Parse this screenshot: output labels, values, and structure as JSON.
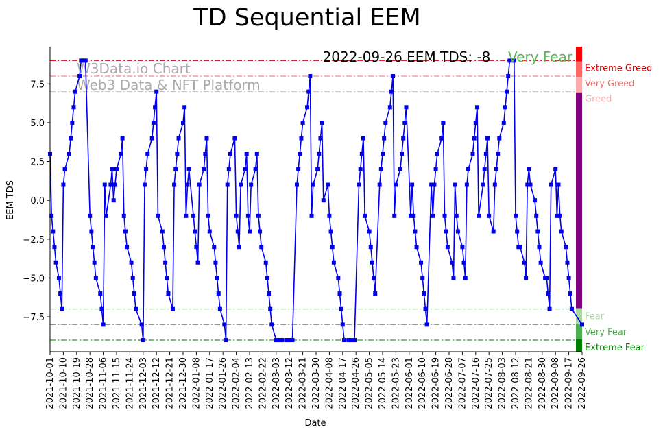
{
  "chart_data": {
    "type": "line",
    "title": "TD Sequential EEM",
    "xlabel": "Date",
    "ylabel": "EEM TDS",
    "ylim": [
      -9.75,
      9.9
    ],
    "yticks": [
      -7.5,
      -5.0,
      -2.5,
      0.0,
      2.5,
      5.0,
      7.5
    ],
    "ytick_labels": [
      "−7.5",
      "−5.0",
      "−2.5",
      "0.0",
      "2.5",
      "5.0",
      "7.5"
    ],
    "xticks": [
      "2021-10-01",
      "2021-10-10",
      "2021-10-19",
      "2021-10-28",
      "2021-11-06",
      "2021-11-15",
      "2021-11-24",
      "2021-12-03",
      "2021-12-12",
      "2021-12-21",
      "2021-12-30",
      "2022-01-08",
      "2022-01-17",
      "2022-01-26",
      "2022-02-04",
      "2022-02-13",
      "2022-02-22",
      "2022-03-03",
      "2022-03-12",
      "2022-03-21",
      "2022-03-30",
      "2022-04-08",
      "2022-04-17",
      "2022-04-26",
      "2022-05-05",
      "2022-05-14",
      "2022-05-23",
      "2022-06-01",
      "2022-06-10",
      "2022-06-19",
      "2022-06-28",
      "2022-07-07",
      "2022-07-16",
      "2022-07-25",
      "2022-08-03",
      "2022-08-12",
      "2022-08-21",
      "2022-08-30",
      "2022-09-08",
      "2022-09-17",
      "2022-09-26"
    ],
    "x_start": "2021-10-01",
    "x_end": "2022-09-26",
    "series": [
      {
        "name": "EEM TDS",
        "color": "#0000ee",
        "points": [
          [
            0,
            3
          ],
          [
            1,
            -1
          ],
          [
            2,
            -2
          ],
          [
            3,
            -3
          ],
          [
            4,
            -4
          ],
          [
            6,
            -5
          ],
          [
            7,
            -6
          ],
          [
            8,
            -7
          ],
          [
            9,
            1
          ],
          [
            10,
            2
          ],
          [
            13,
            3
          ],
          [
            14,
            4
          ],
          [
            15,
            5
          ],
          [
            16,
            6
          ],
          [
            17,
            7
          ],
          [
            20,
            8
          ],
          [
            21,
            9
          ],
          [
            22,
            9
          ],
          [
            23,
            9
          ],
          [
            24,
            9
          ],
          [
            27,
            -1
          ],
          [
            28,
            -2
          ],
          [
            29,
            -3
          ],
          [
            30,
            -4
          ],
          [
            31,
            -5
          ],
          [
            34,
            -6
          ],
          [
            35,
            -7
          ],
          [
            36,
            -8
          ],
          [
            37,
            1
          ],
          [
            38,
            -1
          ],
          [
            41,
            1
          ],
          [
            42,
            2
          ],
          [
            43,
            0
          ],
          [
            44,
            1
          ],
          [
            45,
            2
          ],
          [
            48,
            3
          ],
          [
            49,
            4
          ],
          [
            50,
            -1
          ],
          [
            51,
            -2
          ],
          [
            52,
            -3
          ],
          [
            55,
            -4
          ],
          [
            56,
            -5
          ],
          [
            57,
            -6
          ],
          [
            58,
            -7
          ],
          [
            62,
            -8
          ],
          [
            63,
            -9
          ],
          [
            64,
            1
          ],
          [
            65,
            2
          ],
          [
            66,
            3
          ],
          [
            69,
            4
          ],
          [
            70,
            5
          ],
          [
            71,
            6
          ],
          [
            72,
            7
          ],
          [
            73,
            -1
          ],
          [
            76,
            -2
          ],
          [
            77,
            -3
          ],
          [
            78,
            -4
          ],
          [
            79,
            -5
          ],
          [
            80,
            -6
          ],
          [
            83,
            -7
          ],
          [
            84,
            1
          ],
          [
            85,
            2
          ],
          [
            86,
            3
          ],
          [
            87,
            4
          ],
          [
            90,
            5
          ],
          [
            91,
            6
          ],
          [
            92,
            -1
          ],
          [
            93,
            1
          ],
          [
            94,
            2
          ],
          [
            97,
            -1
          ],
          [
            98,
            -2
          ],
          [
            99,
            -3
          ],
          [
            100,
            -4
          ],
          [
            101,
            1
          ],
          [
            104,
            2
          ],
          [
            105,
            3
          ],
          [
            106,
            4
          ],
          [
            107,
            -1
          ],
          [
            108,
            -2
          ],
          [
            111,
            -3
          ],
          [
            112,
            -4
          ],
          [
            113,
            -5
          ],
          [
            114,
            -6
          ],
          [
            115,
            -7
          ],
          [
            118,
            -8
          ],
          [
            119,
            -9
          ],
          [
            120,
            1
          ],
          [
            121,
            2
          ],
          [
            122,
            3
          ],
          [
            125,
            4
          ],
          [
            126,
            -1
          ],
          [
            127,
            -2
          ],
          [
            128,
            -3
          ],
          [
            129,
            1
          ],
          [
            132,
            2
          ],
          [
            133,
            3
          ],
          [
            134,
            -1
          ],
          [
            135,
            -2
          ],
          [
            136,
            1
          ],
          [
            139,
            2
          ],
          [
            140,
            3
          ],
          [
            141,
            -1
          ],
          [
            142,
            -2
          ],
          [
            143,
            -3
          ],
          [
            146,
            -4
          ],
          [
            147,
            -5
          ],
          [
            148,
            -6
          ],
          [
            149,
            -7
          ],
          [
            150,
            -8
          ],
          [
            153,
            -9
          ],
          [
            154,
            -9
          ],
          [
            155,
            -9
          ],
          [
            156,
            -9
          ],
          [
            157,
            -9
          ],
          [
            160,
            -9
          ],
          [
            161,
            -9
          ],
          [
            162,
            -9
          ],
          [
            163,
            -9
          ],
          [
            164,
            -9
          ],
          [
            167,
            1
          ],
          [
            168,
            2
          ],
          [
            169,
            3
          ],
          [
            170,
            4
          ],
          [
            171,
            5
          ],
          [
            174,
            6
          ],
          [
            175,
            7
          ],
          [
            176,
            8
          ],
          [
            177,
            -1
          ],
          [
            178,
            1
          ],
          [
            181,
            2
          ],
          [
            182,
            3
          ],
          [
            183,
            4
          ],
          [
            184,
            5
          ],
          [
            185,
            0
          ],
          [
            188,
            1
          ],
          [
            189,
            -1
          ],
          [
            190,
            -2
          ],
          [
            191,
            -3
          ],
          [
            192,
            -4
          ],
          [
            195,
            -5
          ],
          [
            196,
            -6
          ],
          [
            197,
            -7
          ],
          [
            198,
            -8
          ],
          [
            199,
            -9
          ],
          [
            202,
            -9
          ],
          [
            203,
            -9
          ],
          [
            204,
            -9
          ],
          [
            205,
            -9
          ],
          [
            206,
            -9
          ],
          [
            209,
            1
          ],
          [
            210,
            2
          ],
          [
            211,
            3
          ],
          [
            212,
            4
          ],
          [
            213,
            -1
          ],
          [
            216,
            -2
          ],
          [
            217,
            -3
          ],
          [
            218,
            -4
          ],
          [
            219,
            -5
          ],
          [
            220,
            -6
          ],
          [
            223,
            1
          ],
          [
            224,
            2
          ],
          [
            225,
            3
          ],
          [
            226,
            4
          ],
          [
            227,
            5
          ],
          [
            230,
            6
          ],
          [
            231,
            7
          ],
          [
            232,
            8
          ],
          [
            233,
            -1
          ],
          [
            234,
            1
          ],
          [
            237,
            2
          ],
          [
            238,
            3
          ],
          [
            239,
            4
          ],
          [
            240,
            5
          ],
          [
            241,
            6
          ],
          [
            244,
            -1
          ],
          [
            245,
            1
          ],
          [
            246,
            -1
          ],
          [
            247,
            -2
          ],
          [
            248,
            -3
          ],
          [
            251,
            -4
          ],
          [
            252,
            -5
          ],
          [
            253,
            -6
          ],
          [
            254,
            -7
          ],
          [
            255,
            -8
          ],
          [
            258,
            1
          ],
          [
            259,
            -1
          ],
          [
            260,
            1
          ],
          [
            261,
            2
          ],
          [
            262,
            3
          ],
          [
            265,
            4
          ],
          [
            266,
            5
          ],
          [
            267,
            -1
          ],
          [
            268,
            -2
          ],
          [
            269,
            -3
          ],
          [
            272,
            -4
          ],
          [
            273,
            -5
          ],
          [
            274,
            1
          ],
          [
            275,
            -1
          ],
          [
            276,
            -2
          ],
          [
            279,
            -3
          ],
          [
            280,
            -4
          ],
          [
            281,
            -5
          ],
          [
            282,
            1
          ],
          [
            283,
            2
          ],
          [
            286,
            3
          ],
          [
            287,
            4
          ],
          [
            288,
            5
          ],
          [
            289,
            6
          ],
          [
            290,
            -1
          ],
          [
            293,
            1
          ],
          [
            294,
            2
          ],
          [
            295,
            3
          ],
          [
            296,
            4
          ],
          [
            297,
            -1
          ],
          [
            300,
            -2
          ],
          [
            301,
            1
          ],
          [
            302,
            2
          ],
          [
            303,
            3
          ],
          [
            304,
            4
          ],
          [
            307,
            5
          ],
          [
            308,
            6
          ],
          [
            309,
            7
          ],
          [
            310,
            8
          ],
          [
            311,
            9
          ],
          [
            314,
            9
          ],
          [
            315,
            -1
          ],
          [
            316,
            -2
          ],
          [
            317,
            -3
          ],
          [
            318,
            -3
          ],
          [
            321,
            -4
          ],
          [
            322,
            -5
          ],
          [
            323,
            1
          ],
          [
            324,
            2
          ],
          [
            325,
            1
          ],
          [
            328,
            0
          ],
          [
            329,
            -1
          ],
          [
            330,
            -2
          ],
          [
            331,
            -3
          ],
          [
            332,
            -4
          ],
          [
            335,
            -5
          ],
          [
            336,
            -5
          ],
          [
            337,
            -6
          ],
          [
            338,
            -7
          ],
          [
            339,
            1
          ],
          [
            342,
            2
          ],
          [
            343,
            -1
          ],
          [
            344,
            1
          ],
          [
            345,
            -1
          ],
          [
            346,
            -2
          ],
          [
            349,
            -3
          ],
          [
            350,
            -4
          ],
          [
            351,
            -5
          ],
          [
            352,
            -6
          ],
          [
            353,
            -7
          ],
          [
            360,
            -8
          ]
        ]
      }
    ],
    "reference_lines": [
      {
        "value": 9,
        "color": "#dd0000",
        "label": "Extreme Greed"
      },
      {
        "value": 8,
        "color": "#f06a6a",
        "label": "Very Greed"
      },
      {
        "value": 7,
        "color": "#f4aaaa",
        "label": "Greed"
      },
      {
        "value": -7,
        "color": "#a8d8a0",
        "label": "Fear"
      },
      {
        "value": -8,
        "color": "#4caf50",
        "label": "Very Fear"
      },
      {
        "value": -9,
        "color": "#007a00",
        "label": "Extreme Fear"
      }
    ],
    "sentiment_bar": [
      {
        "from": 8.95,
        "to": 9.9,
        "color": "#ff0000"
      },
      {
        "from": 7.95,
        "to": 8.95,
        "color": "#ff6666"
      },
      {
        "from": 6.95,
        "to": 7.95,
        "color": "#ffaaaa"
      },
      {
        "from": -6.95,
        "to": 6.95,
        "color": "#800080"
      },
      {
        "from": -7.95,
        "to": -6.95,
        "color": "#a8d8a0"
      },
      {
        "from": -8.95,
        "to": -7.95,
        "color": "#4caf50"
      },
      {
        "from": -9.75,
        "to": -8.95,
        "color": "#008000"
      }
    ],
    "annotations": {
      "headline": "2022-09-26 EEM TDS: -8",
      "headline_status": "Very Fear",
      "headline_status_color": "#5cb85c",
      "watermark_line1": "W3Data.io Chart",
      "watermark_line2": "Web3 Data & NFT Platform"
    }
  }
}
